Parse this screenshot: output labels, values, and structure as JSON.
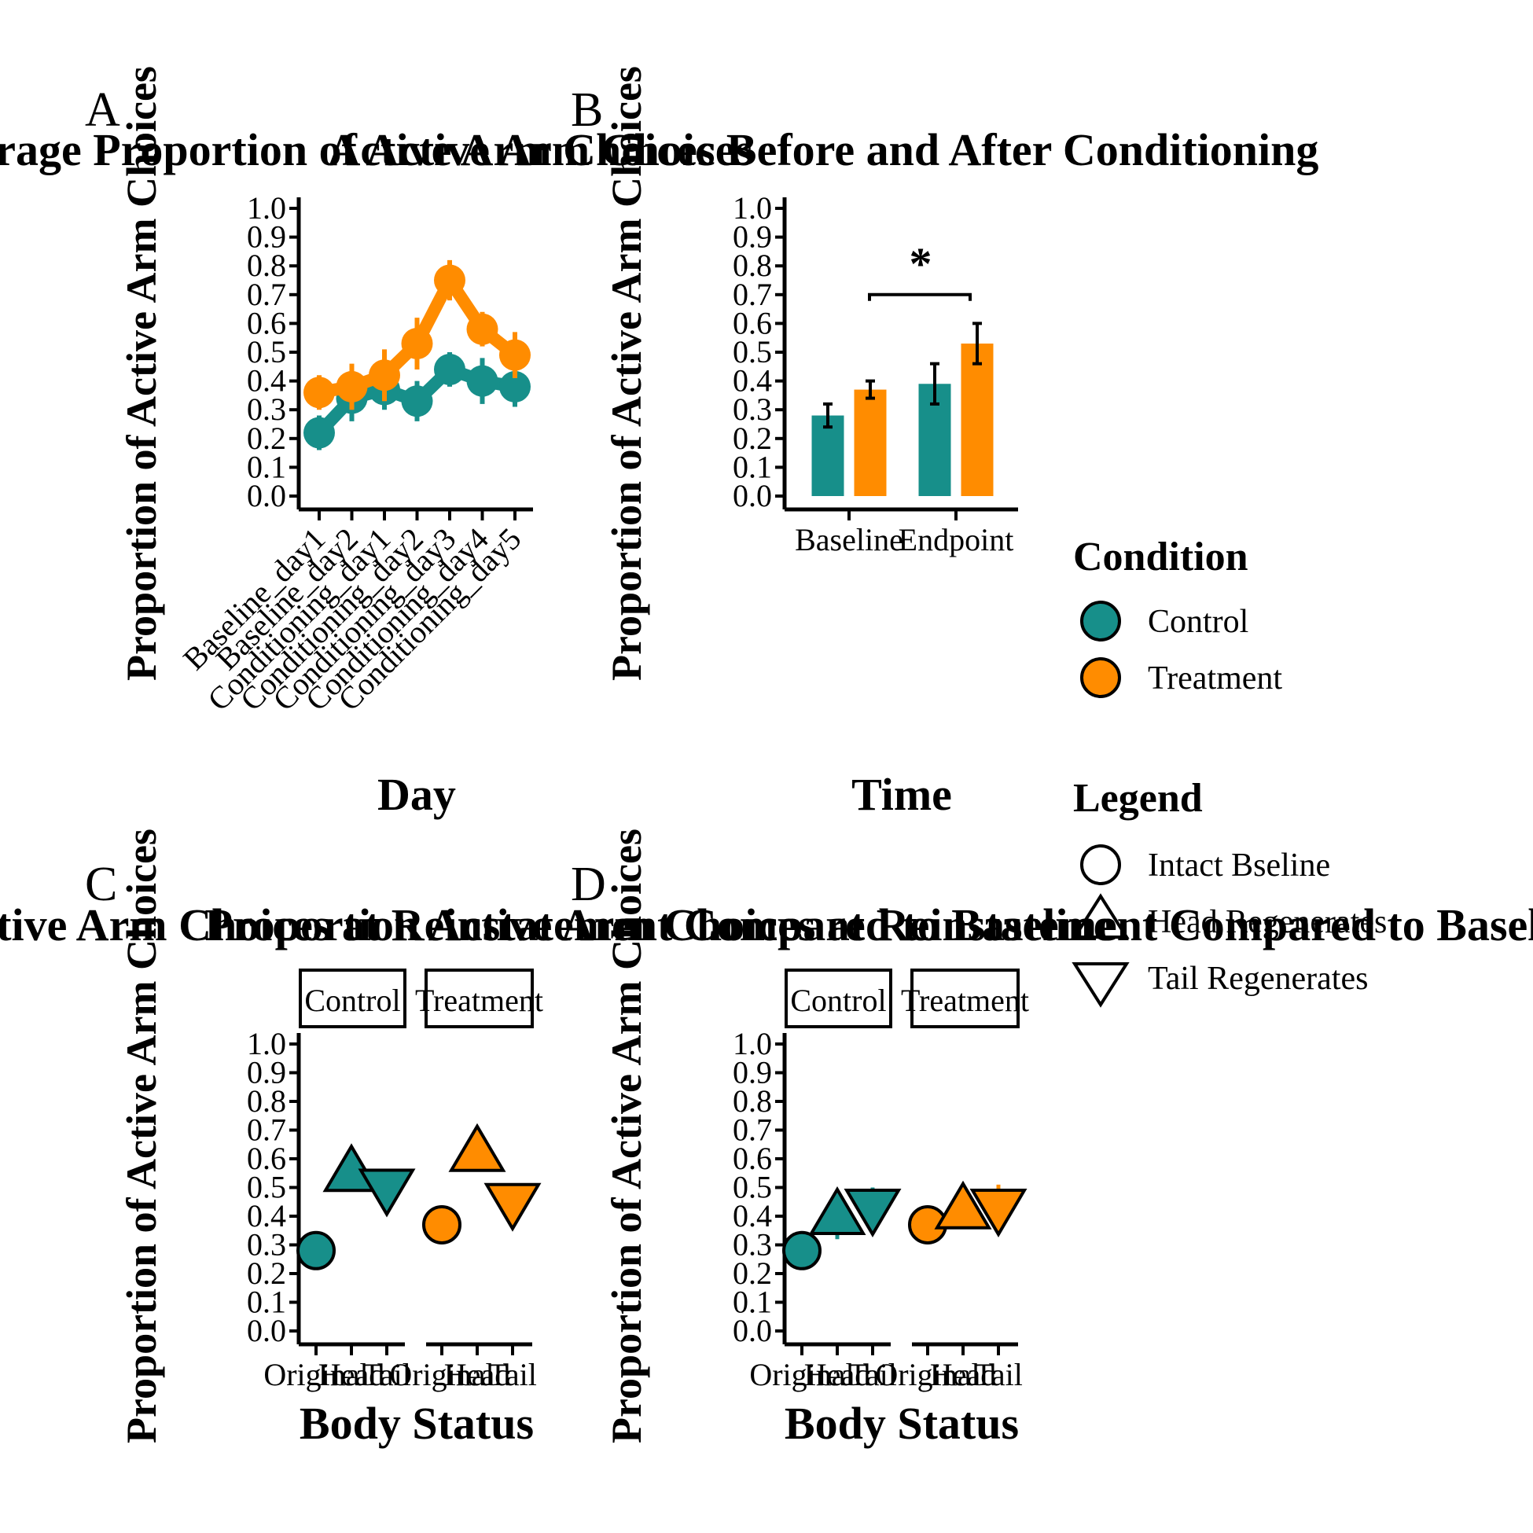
{
  "colors": {
    "control": "#178f8a",
    "treatment": "#ff8c00",
    "ink": "#000000",
    "background": "#ffffff"
  },
  "y_ticks": [
    "0.0",
    "0.1",
    "0.2",
    "0.3",
    "0.4",
    "0.5",
    "0.6",
    "0.7",
    "0.8",
    "0.9",
    "1.0"
  ],
  "panels": {
    "A": {
      "tag": "A",
      "title": "Average Proportion of Active Arm Choices",
      "ylabel": "Proportion of Active Arm Choices",
      "xlabel": "Day"
    },
    "B": {
      "tag": "B",
      "title": "Active Arm Choices Before and After Conditioning",
      "ylabel": "Proportion of Active Arm Choices",
      "xlabel": "Time",
      "sig_label": "*"
    },
    "C": {
      "tag": "C",
      "title": "Proportion Active Arm Choices at Reinstatement Compared to Baseline",
      "ylabel": "Proportion of Active Arm Choices",
      "xlabel": "Body Status",
      "strips": [
        "Control",
        "Treatment"
      ]
    },
    "D": {
      "tag": "D",
      "title": "Proportion Active Arm Choices at Reinstatement Compared to Baseline",
      "ylabel": "Proportion of Active Arm Choices",
      "xlabel": "Body Status",
      "strips": [
        "Control",
        "Treatment"
      ]
    }
  },
  "legend": {
    "condition": {
      "title": "Condition",
      "items": [
        "Control",
        "Treatment"
      ]
    },
    "shape": {
      "title": "Legend",
      "items": [
        "Intact Bseline",
        "Head Regenerates",
        "Tail Regenerates"
      ]
    }
  },
  "chart_data": [
    {
      "panel": "A",
      "type": "line",
      "title": "Average Proportion of Active Arm Choices",
      "xlabel": "Day",
      "ylabel": "Proportion of Active Arm Choices",
      "ylim": [
        0,
        1
      ],
      "categories": [
        "Baseline_day1",
        "Baseline_day2",
        "Conditioning_day1",
        "Conditioning_day2",
        "Conditioning_day3",
        "Conditioning_day4",
        "Conditioning_day5"
      ],
      "series": [
        {
          "name": "Control",
          "values": [
            0.22,
            0.34,
            0.37,
            0.33,
            0.44,
            0.4,
            0.38
          ],
          "error": [
            0.06,
            0.08,
            0.07,
            0.07,
            0.06,
            0.08,
            0.07
          ]
        },
        {
          "name": "Treatment",
          "values": [
            0.36,
            0.38,
            0.42,
            0.53,
            0.75,
            0.58,
            0.49
          ],
          "error": [
            0.06,
            0.08,
            0.09,
            0.09,
            0.07,
            0.06,
            0.08
          ]
        }
      ]
    },
    {
      "panel": "B",
      "type": "bar",
      "title": "Active Arm Choices Before and After Conditioning",
      "xlabel": "Time",
      "ylabel": "Proportion of Active Arm Choices",
      "ylim": [
        0,
        1
      ],
      "categories": [
        "Baseline",
        "Endpoint"
      ],
      "series": [
        {
          "name": "Control",
          "values": [
            0.28,
            0.39
          ],
          "error": [
            0.04,
            0.07
          ]
        },
        {
          "name": "Treatment",
          "values": [
            0.37,
            0.53
          ],
          "error": [
            0.03,
            0.07
          ]
        }
      ],
      "annotation": "*"
    },
    {
      "panel": "C",
      "type": "scatter",
      "title": "Proportion Active Arm Choices at Reinstatement Compared to Baseline",
      "xlabel": "Body Status",
      "ylabel": "Proportion of Active Arm Choices",
      "ylim": [
        0,
        1
      ],
      "facets": [
        "Control",
        "Treatment"
      ],
      "categories": [
        "Original",
        "Head",
        "Tail"
      ],
      "series": [
        {
          "name": "Control",
          "values": [
            0.28,
            0.55,
            0.5
          ],
          "error": [
            0,
            0.05,
            0.05
          ]
        },
        {
          "name": "Treatment",
          "values": [
            0.37,
            0.62,
            0.45
          ],
          "error": [
            0,
            0.04,
            0.06
          ]
        }
      ]
    },
    {
      "panel": "D",
      "type": "scatter",
      "title": "Proportion Active Arm Choices at Reinstatement Compared to Baseline",
      "xlabel": "Body Status",
      "ylabel": "Proportion of Active Arm Choices",
      "ylim": [
        0,
        1
      ],
      "facets": [
        "Control",
        "Treatment"
      ],
      "categories": [
        "Original",
        "Head",
        "Tail"
      ],
      "series": [
        {
          "name": "Control",
          "values": [
            0.28,
            0.4,
            0.43
          ],
          "error": [
            0,
            0.08,
            0.07
          ]
        },
        {
          "name": "Treatment",
          "values": [
            0.37,
            0.42,
            0.43
          ],
          "error": [
            0,
            0.06,
            0.08
          ]
        }
      ]
    }
  ]
}
